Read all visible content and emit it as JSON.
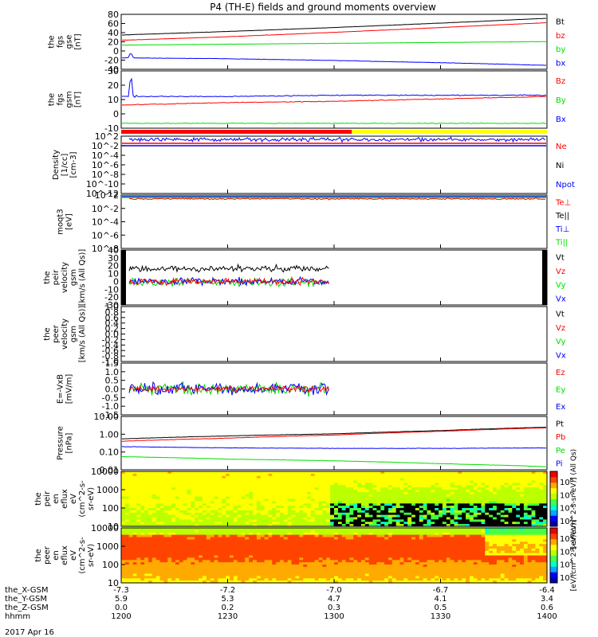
{
  "title": "P4 (TH-E) fields and ground moments overview",
  "date_label": "2017 Apr 16",
  "colors": {
    "black": "#000000",
    "red": "#ff0000",
    "green": "#00dd00",
    "blue": "#0000ff",
    "yellow": "#ffff00",
    "flux_scale": [
      "#0000aa",
      "#0000ff",
      "#00aaff",
      "#00ffcc",
      "#44ff44",
      "#bbff00",
      "#ffff00",
      "#ffaa00",
      "#ff4400",
      "#ee0000"
    ]
  },
  "chart_data": {
    "type": "line",
    "x_axis": {
      "rows": [
        {
          "label": "the_X-GSM",
          "values": [
            "-7.3",
            "-7.2",
            "-7.0",
            "-6.7",
            "-6.4"
          ]
        },
        {
          "label": "the_Y-GSM",
          "values": [
            "5.9",
            "5.3",
            "4.7",
            "4.1",
            "3.4"
          ]
        },
        {
          "label": "the_Z-GSM",
          "values": [
            "0.0",
            "0.2",
            "0.3",
            "0.5",
            "0.6"
          ]
        },
        {
          "label": "hhmm",
          "values": [
            "1200",
            "1230",
            "1300",
            "1330",
            "1400"
          ]
        }
      ],
      "time_range": [
        "1200",
        "1400"
      ]
    },
    "panels": [
      {
        "id": "fgs_gse",
        "ylabel": [
          "the",
          "fgs",
          "gse",
          "[nT]"
        ],
        "yticks": [
          "80",
          "60",
          "40",
          "20",
          "0",
          "-20",
          "-40"
        ],
        "ylim": [
          -40,
          85
        ],
        "legend": [
          {
            "text": "Bt",
            "color": "black"
          },
          {
            "text": "bz",
            "color": "red"
          },
          {
            "text": "by",
            "color": "green"
          },
          {
            "text": "bx",
            "color": "blue"
          }
        ],
        "series": [
          {
            "name": "Bt",
            "color": "black",
            "x": [
              "1200",
              "1230",
              "1300",
              "1330",
              "1400"
            ],
            "y": [
              38,
              46,
              55,
              65,
              76
            ]
          },
          {
            "name": "bz",
            "color": "red",
            "x": [
              "1200",
              "1230",
              "1300",
              "1330",
              "1400"
            ],
            "y": [
              26,
              34,
              44,
              55,
              66
            ]
          },
          {
            "name": "by",
            "color": "green",
            "x": [
              "1200",
              "1230",
              "1300",
              "1330",
              "1400"
            ],
            "y": [
              15,
              17,
              19,
              21,
              23
            ]
          },
          {
            "name": "bx",
            "color": "blue",
            "x": [
              "1200",
              "1230",
              "1300",
              "1330",
              "1400"
            ],
            "y": [
              -14,
              -16,
              -20,
              -25,
              -31
            ]
          }
        ]
      },
      {
        "id": "fgs_gsm",
        "ylabel": [
          "the",
          "fgs",
          "gsm",
          "[nT]"
        ],
        "yticks": [
          "30",
          "20",
          "10",
          "0",
          "-10"
        ],
        "ylim": [
          -15,
          32
        ],
        "legend": [
          {
            "text": "Bz",
            "color": "red"
          },
          {
            "text": "By",
            "color": "green"
          },
          {
            "text": "Bx",
            "color": "blue"
          }
        ],
        "series": [
          {
            "name": "Bz",
            "color": "red",
            "x": [
              "1200",
              "1230",
              "1300",
              "1330",
              "1400"
            ],
            "y": [
              4,
              6,
              7,
              9,
              11
            ]
          },
          {
            "name": "By",
            "color": "green",
            "x": [
              "1200",
              "1230",
              "1300",
              "1330",
              "1400"
            ],
            "y": [
              -11,
              -11,
              -11,
              -11,
              -11
            ]
          },
          {
            "name": "Bx",
            "color": "blue",
            "x": [
              "1200",
              "1230",
              "1300",
              "1330",
              "1400"
            ],
            "y": [
              11,
              11,
              12,
              12,
              12
            ]
          }
        ]
      },
      {
        "id": "mode_bar",
        "type": "status",
        "segments": [
          {
            "from": "1200",
            "to": "1305",
            "color": "red"
          },
          {
            "from": "1305",
            "to": "1400",
            "color": "yellow"
          }
        ]
      },
      {
        "id": "density",
        "ylabel": [
          "Density",
          "[1/cc]",
          "[cm-3]"
        ],
        "log": true,
        "yticks": [
          "10^2",
          "10^-2",
          "10^-4",
          "10^-6",
          "10^-8",
          "10^-10",
          "10^-12"
        ],
        "legend": [
          {
            "text": "Ne",
            "color": "red"
          },
          {
            "text": "Ni",
            "color": "black"
          },
          {
            "text": "Npot",
            "color": "blue"
          }
        ]
      },
      {
        "id": "temperature",
        "ylabel": [
          "moqt3",
          "[eV]"
        ],
        "log": true,
        "yticks": [
          "10^2",
          "10^-2",
          "10^-4",
          "10^-6",
          "10^-8"
        ],
        "legend": [
          {
            "text": "Te⊥",
            "color": "red"
          },
          {
            "text": "Te||",
            "color": "black"
          },
          {
            "text": "Ti⊥",
            "color": "blue"
          },
          {
            "text": "Ti||",
            "color": "green"
          }
        ]
      },
      {
        "id": "peir_velocity",
        "ylabel": [
          "the",
          "peir",
          "velocity",
          "gsm",
          "[km/s (All Qs)]"
        ],
        "yticks": [
          "40",
          "30",
          "20",
          "10",
          "0",
          "-10",
          "-20",
          "-30"
        ],
        "ylim": [
          -30,
          40
        ],
        "legend": [
          {
            "text": "Vt",
            "color": "black"
          },
          {
            "text": "Vz",
            "color": "red"
          },
          {
            "text": "Vy",
            "color": "green"
          },
          {
            "text": "Vx",
            "color": "blue"
          }
        ]
      },
      {
        "id": "peer_velocity",
        "ylabel": [
          "the",
          "peer",
          "velocity",
          "gsm",
          "[km/s (All Qs)]"
        ],
        "yticks": [
          "1.0",
          "0.8",
          "0.6",
          "0.4",
          "0.2",
          "0.0",
          "-0.2",
          "-0.4",
          "-0.6",
          "-0.8",
          "-1.0"
        ],
        "ylim": [
          -1,
          1
        ],
        "legend": [
          {
            "text": "Vt",
            "color": "black"
          },
          {
            "text": "Vz",
            "color": "red"
          },
          {
            "text": "Vy",
            "color": "green"
          },
          {
            "text": "Vx",
            "color": "blue"
          }
        ]
      },
      {
        "id": "efield",
        "ylabel": [
          "E=-VxB",
          "[mV/m]"
        ],
        "yticks": [
          "1.5",
          "1.0",
          "0.5",
          "0.0",
          "-0.5",
          "-1.0",
          "-1.5"
        ],
        "ylim": [
          -1.5,
          1.5
        ],
        "legend": [
          {
            "text": "Ez",
            "color": "red"
          },
          {
            "text": "Ey",
            "color": "green"
          },
          {
            "text": "Ex",
            "color": "blue"
          }
        ]
      },
      {
        "id": "pressure",
        "ylabel": [
          "Pressure",
          "[nPa]"
        ],
        "log": true,
        "yticks": [
          "10.00",
          "1.00",
          "0.10",
          "0.01"
        ],
        "ylim": [
          0.01,
          10
        ],
        "legend": [
          {
            "text": "Pt",
            "color": "black"
          },
          {
            "text": "Pb",
            "color": "red"
          },
          {
            "text": "Pe",
            "color": "green"
          },
          {
            "text": "Pi",
            "color": "blue"
          }
        ],
        "series": [
          {
            "name": "Pt",
            "color": "black",
            "x": [
              "1200",
              "1230",
              "1300",
              "1330",
              "1400"
            ],
            "y": [
              0.55,
              0.8,
              1.05,
              1.6,
              2.5
            ]
          },
          {
            "name": "Pb",
            "color": "red",
            "x": [
              "1200",
              "1230",
              "1300",
              "1330",
              "1400"
            ],
            "y": [
              0.4,
              0.6,
              0.9,
              1.45,
              2.3
            ]
          },
          {
            "name": "Pe",
            "color": "green",
            "x": [
              "1200",
              "1230",
              "1300",
              "1330",
              "1400"
            ],
            "y": [
              0.055,
              0.04,
              0.032,
              0.022,
              0.015
            ]
          },
          {
            "name": "Pi",
            "color": "blue",
            "x": [
              "1200",
              "1230",
              "1300",
              "1330",
              "1400"
            ],
            "y": [
              0.2,
              0.17,
              0.16,
              0.16,
              0.17
            ]
          }
        ]
      },
      {
        "id": "peir_spec",
        "type": "spectrogram",
        "ylabel": [
          "the",
          "peir",
          "en",
          "eflux",
          "eV",
          "(cm^2-s-",
          "sr-eV)"
        ],
        "yticks": [
          "10000",
          "1000",
          "100",
          "10"
        ],
        "colorbar": {
          "ticks": [
            "10^8",
            "10^6",
            "10^4",
            "10^2"
          ],
          "label": "[eV/(cm^2-s-sr-eV)] (All Qs)"
        }
      },
      {
        "id": "peer_spec",
        "type": "spectrogram",
        "ylabel": [
          "the",
          "peer",
          "en",
          "eflux",
          "eV",
          "(cm^2-s-",
          "sr-eV)"
        ],
        "yticks": [
          "10000",
          "1000",
          "100",
          "10"
        ],
        "colorbar": {
          "ticks": [
            "10^8",
            "10^6",
            "10^4",
            "10^2"
          ],
          "label": "[eV/(cm^2-s-sr-eV)]"
        }
      }
    ]
  }
}
